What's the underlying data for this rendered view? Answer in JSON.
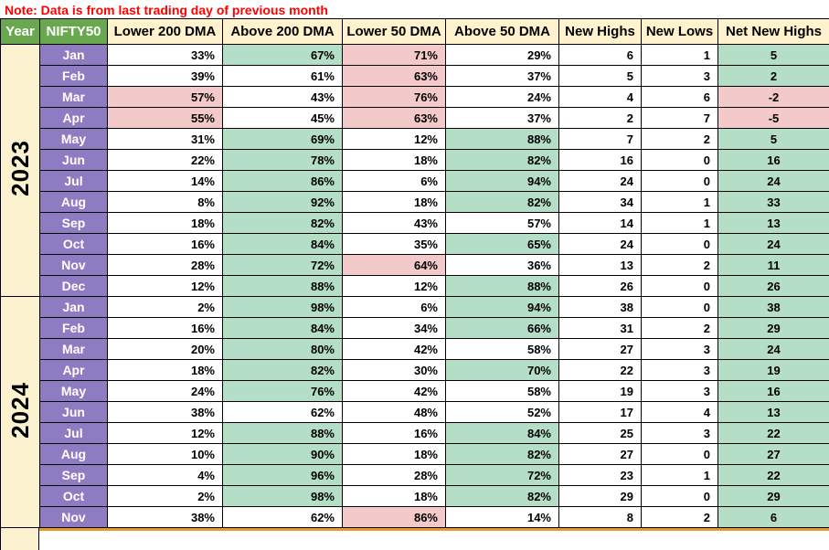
{
  "note": "Note: Data is from last trading day of previous month",
  "colors": {
    "note_red": "#ff0000",
    "header_green": "#6aa84f",
    "header_cream": "#fff2cc",
    "month_purple": "#8e7cc3",
    "year_cream": "#fcf2d0",
    "cell_green": "#b5dec6",
    "cell_pink": "#f4c9ca",
    "grid_black": "#000000",
    "accent_orange": "#e8962e"
  },
  "chart_data": {
    "type": "table",
    "title": "Note: Data is from last trading day of previous month",
    "columns": [
      "Year",
      "NIFTY50",
      "Lower 200 DMA",
      "Above 200 DMA",
      "Lower 50 DMA",
      "Above 50 DMA",
      "New Highs",
      "New Lows",
      "Net New Highs"
    ],
    "highlight_legend": {
      "g": "green",
      "p": "pink",
      "": "none"
    },
    "rows": [
      {
        "year": "2023",
        "month": "Jan",
        "values": [
          "33%",
          "67%",
          "71%",
          "29%",
          "6",
          "1",
          "5"
        ],
        "highlights": [
          "",
          "g",
          "p",
          "",
          "",
          "",
          "g"
        ]
      },
      {
        "year": "2023",
        "month": "Feb",
        "values": [
          "39%",
          "61%",
          "63%",
          "37%",
          "5",
          "3",
          "2"
        ],
        "highlights": [
          "",
          "",
          "p",
          "",
          "",
          "",
          "g"
        ]
      },
      {
        "year": "2023",
        "month": "Mar",
        "values": [
          "57%",
          "43%",
          "76%",
          "24%",
          "4",
          "6",
          "-2"
        ],
        "highlights": [
          "p",
          "",
          "p",
          "",
          "",
          "",
          "p"
        ]
      },
      {
        "year": "2023",
        "month": "Apr",
        "values": [
          "55%",
          "45%",
          "63%",
          "37%",
          "2",
          "7",
          "-5"
        ],
        "highlights": [
          "p",
          "",
          "p",
          "",
          "",
          "",
          "p"
        ]
      },
      {
        "year": "2023",
        "month": "May",
        "values": [
          "31%",
          "69%",
          "12%",
          "88%",
          "7",
          "2",
          "5"
        ],
        "highlights": [
          "",
          "g",
          "",
          "g",
          "",
          "",
          "g"
        ]
      },
      {
        "year": "2023",
        "month": "Jun",
        "values": [
          "22%",
          "78%",
          "18%",
          "82%",
          "16",
          "0",
          "16"
        ],
        "highlights": [
          "",
          "g",
          "",
          "g",
          "",
          "",
          "g"
        ]
      },
      {
        "year": "2023",
        "month": "Jul",
        "values": [
          "14%",
          "86%",
          "6%",
          "94%",
          "24",
          "0",
          "24"
        ],
        "highlights": [
          "",
          "g",
          "",
          "g",
          "",
          "",
          "g"
        ]
      },
      {
        "year": "2023",
        "month": "Aug",
        "values": [
          "8%",
          "92%",
          "18%",
          "82%",
          "34",
          "1",
          "33"
        ],
        "highlights": [
          "",
          "g",
          "",
          "g",
          "",
          "",
          "g"
        ]
      },
      {
        "year": "2023",
        "month": "Sep",
        "values": [
          "18%",
          "82%",
          "43%",
          "57%",
          "14",
          "1",
          "13"
        ],
        "highlights": [
          "",
          "g",
          "",
          "",
          "",
          "",
          "g"
        ]
      },
      {
        "year": "2023",
        "month": "Oct",
        "values": [
          "16%",
          "84%",
          "35%",
          "65%",
          "24",
          "0",
          "24"
        ],
        "highlights": [
          "",
          "g",
          "",
          "g",
          "",
          "",
          "g"
        ]
      },
      {
        "year": "2023",
        "month": "Nov",
        "values": [
          "28%",
          "72%",
          "64%",
          "36%",
          "13",
          "2",
          "11"
        ],
        "highlights": [
          "",
          "g",
          "p",
          "",
          "",
          "",
          "g"
        ]
      },
      {
        "year": "2023",
        "month": "Dec",
        "values": [
          "12%",
          "88%",
          "12%",
          "88%",
          "26",
          "0",
          "26"
        ],
        "highlights": [
          "",
          "g",
          "",
          "g",
          "",
          "",
          "g"
        ]
      },
      {
        "year": "2024",
        "month": "Jan",
        "values": [
          "2%",
          "98%",
          "6%",
          "94%",
          "38",
          "0",
          "38"
        ],
        "highlights": [
          "",
          "g",
          "",
          "g",
          "",
          "",
          "g"
        ]
      },
      {
        "year": "2024",
        "month": "Feb",
        "values": [
          "16%",
          "84%",
          "34%",
          "66%",
          "31",
          "2",
          "29"
        ],
        "highlights": [
          "",
          "g",
          "",
          "g",
          "",
          "",
          "g"
        ]
      },
      {
        "year": "2024",
        "month": "Mar",
        "values": [
          "20%",
          "80%",
          "42%",
          "58%",
          "27",
          "3",
          "24"
        ],
        "highlights": [
          "",
          "g",
          "",
          "",
          "",
          "",
          "g"
        ]
      },
      {
        "year": "2024",
        "month": "Apr",
        "values": [
          "18%",
          "82%",
          "30%",
          "70%",
          "22",
          "3",
          "19"
        ],
        "highlights": [
          "",
          "g",
          "",
          "g",
          "",
          "",
          "g"
        ]
      },
      {
        "year": "2024",
        "month": "May",
        "values": [
          "24%",
          "76%",
          "42%",
          "58%",
          "19",
          "3",
          "16"
        ],
        "highlights": [
          "",
          "g",
          "",
          "",
          "",
          "",
          "g"
        ]
      },
      {
        "year": "2024",
        "month": "Jun",
        "values": [
          "38%",
          "62%",
          "48%",
          "52%",
          "17",
          "4",
          "13"
        ],
        "highlights": [
          "",
          "",
          "",
          "",
          "",
          "",
          "g"
        ]
      },
      {
        "year": "2024",
        "month": "Jul",
        "values": [
          "12%",
          "88%",
          "16%",
          "84%",
          "25",
          "3",
          "22"
        ],
        "highlights": [
          "",
          "g",
          "",
          "g",
          "",
          "",
          "g"
        ]
      },
      {
        "year": "2024",
        "month": "Aug",
        "values": [
          "10%",
          "90%",
          "18%",
          "82%",
          "27",
          "0",
          "27"
        ],
        "highlights": [
          "",
          "g",
          "",
          "g",
          "",
          "",
          "g"
        ]
      },
      {
        "year": "2024",
        "month": "Sep",
        "values": [
          "4%",
          "96%",
          "28%",
          "72%",
          "23",
          "1",
          "22"
        ],
        "highlights": [
          "",
          "g",
          "",
          "g",
          "",
          "",
          "g"
        ]
      },
      {
        "year": "2024",
        "month": "Oct",
        "values": [
          "2%",
          "98%",
          "18%",
          "82%",
          "29",
          "0",
          "29"
        ],
        "highlights": [
          "",
          "g",
          "",
          "g",
          "",
          "",
          "g"
        ]
      },
      {
        "year": "2024",
        "month": "Nov",
        "values": [
          "38%",
          "62%",
          "86%",
          "14%",
          "8",
          "2",
          "6"
        ],
        "highlights": [
          "",
          "",
          "p",
          "",
          "",
          "",
          "g"
        ]
      }
    ]
  }
}
